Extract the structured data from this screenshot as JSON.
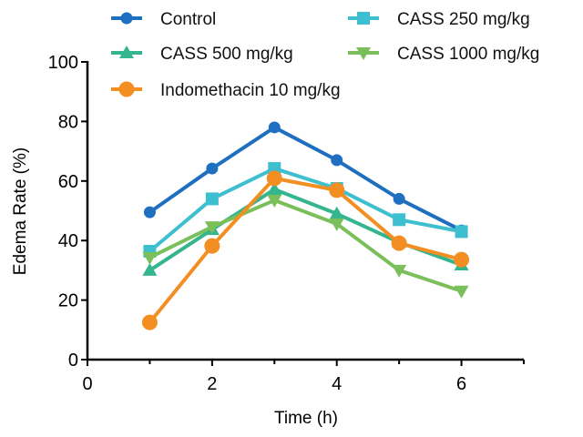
{
  "chart_data": {
    "type": "line",
    "xlabel": "Time (h)",
    "ylabel": "Edema Rate (%)",
    "xlim": [
      0,
      7
    ],
    "ylim": [
      0,
      100
    ],
    "xticks": [
      0,
      2,
      4,
      6
    ],
    "yticks": [
      0,
      20,
      40,
      60,
      80,
      100
    ],
    "grid": false,
    "legend_position": "top",
    "x": [
      1,
      2,
      3,
      4,
      5,
      6
    ],
    "series": [
      {
        "name": "Control",
        "color": "#1f6fc0",
        "marker": "circle",
        "values": [
          49.5,
          64.2,
          78.0,
          67.0,
          54.0,
          43.4
        ]
      },
      {
        "name": "CASS 250 mg/kg",
        "color": "#3dbfcf",
        "marker": "square",
        "values": [
          36.4,
          54.0,
          64.2,
          57.5,
          47.0,
          43.0
        ]
      },
      {
        "name": "CASS 500 mg/kg",
        "color": "#34b58e",
        "marker": "triangle-up",
        "values": [
          30.0,
          43.7,
          57.2,
          49.0,
          39.4,
          31.8
        ]
      },
      {
        "name": "CASS 1000 mg/kg",
        "color": "#7abf5a",
        "marker": "triangle-down",
        "values": [
          34.3,
          44.6,
          53.5,
          45.6,
          30.0,
          23.0
        ]
      },
      {
        "name": "Indomethacin 10 mg/kg",
        "color": "#f28e22",
        "marker": "circle-large",
        "values": [
          12.5,
          38.2,
          60.9,
          56.9,
          39.1,
          33.6
        ]
      }
    ]
  }
}
